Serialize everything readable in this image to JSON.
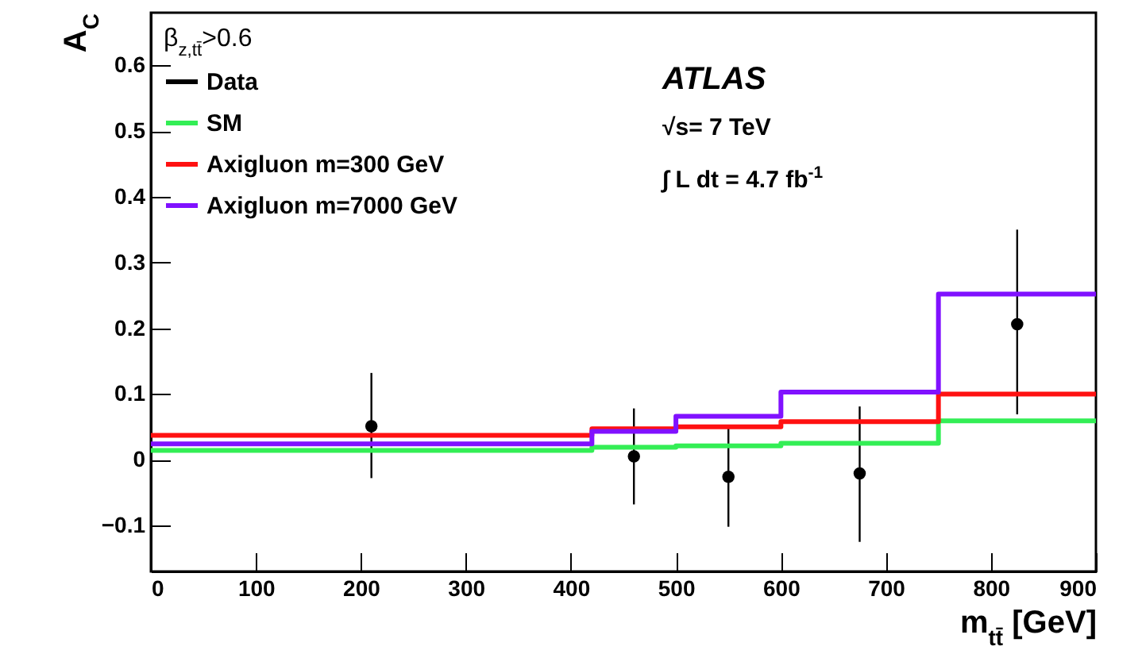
{
  "chart_data": {
    "type": "step",
    "xlabel": "m$_{tt̄}$ [GeV]",
    "ylabel": "A$_{C}$",
    "legend_title": "β$_{z,tt̄}$>0.6",
    "annotations": [
      "ATLAS",
      "√s= 7 TeV",
      "∫ L dt = 4.7 fb$^{-1}$"
    ],
    "xlim": [
      0,
      900
    ],
    "xticks": [
      0,
      100,
      200,
      300,
      400,
      500,
      600,
      700,
      800,
      900
    ],
    "ylim": [
      -0.17,
      0.68
    ],
    "yticks": [
      -0.1,
      0,
      0.1,
      0.2,
      0.3,
      0.4,
      0.5,
      0.6
    ],
    "grid": false,
    "legend": "top left",
    "series": [
      {
        "name": "Data",
        "type": "scatter",
        "color": "#000000",
        "marker": "circle",
        "x": [
          210,
          460,
          550,
          675,
          825
        ],
        "values": [
          0.051,
          0.005,
          -0.026,
          -0.021,
          0.206
        ],
        "errors": [
          [
            -0.028,
            0.132
          ],
          [
            -0.068,
            0.078
          ],
          [
            -0.102,
            0.05
          ],
          [
            -0.125,
            0.081
          ],
          [
            0.069,
            0.35
          ]
        ]
      },
      {
        "name": "SM",
        "color": "#33ee55",
        "x": [
          0,
          420,
          500,
          600,
          750,
          900
        ],
        "values": [
          0.014,
          0.019,
          0.021,
          0.025,
          0.059,
          0.059
        ]
      },
      {
        "name": "Axigluon m=300 GeV",
        "color": "#ff1111",
        "x": [
          0,
          420,
          500,
          600,
          750,
          900
        ],
        "values": [
          0.037,
          0.047,
          0.05,
          0.058,
          0.1,
          0.1
        ]
      },
      {
        "name": "Axigluon m=7000 GeV",
        "color": "#8011ff",
        "x": [
          0,
          420,
          500,
          600,
          750,
          900
        ],
        "values": [
          0.024,
          0.043,
          0.066,
          0.103,
          0.252,
          0.252
        ]
      }
    ]
  }
}
